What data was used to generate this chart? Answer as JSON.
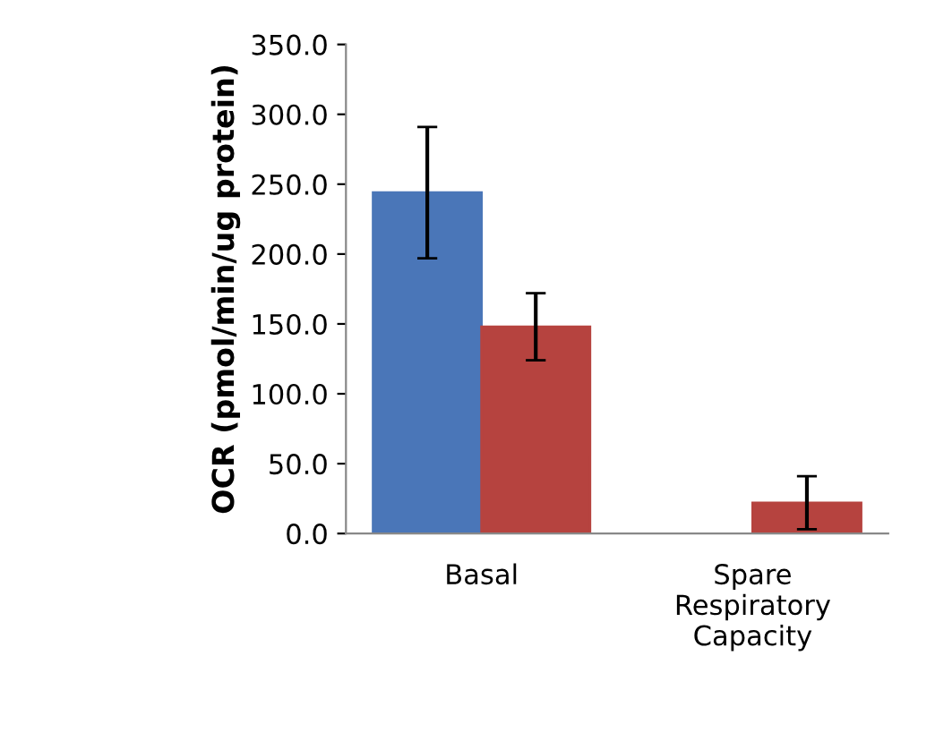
{
  "chart_data": {
    "type": "bar",
    "ylabel": "OCR (pmol/min/ug protein)",
    "categories": [
      "Basal",
      "Spare\nRespiratory\nCapacity"
    ],
    "series": [
      {
        "color": "#4a76b8",
        "values": [
          244,
          null
        ],
        "errors": [
          47,
          null
        ]
      },
      {
        "color": "#b6433f",
        "values": [
          148,
          22
        ],
        "errors": [
          24,
          19
        ]
      }
    ],
    "ylim": [
      0,
      350
    ],
    "yticks": [
      {
        "value": 0,
        "label": "0.0"
      },
      {
        "value": 50,
        "label": "50.0"
      },
      {
        "value": 100,
        "label": "100.0"
      },
      {
        "value": 150,
        "label": "150.0"
      },
      {
        "value": 200,
        "label": "200.0"
      },
      {
        "value": 250,
        "label": "250.0"
      },
      {
        "value": 300,
        "label": "300.0"
      },
      {
        "value": 350,
        "label": "350.0"
      }
    ],
    "grid": false,
    "legend": false
  }
}
